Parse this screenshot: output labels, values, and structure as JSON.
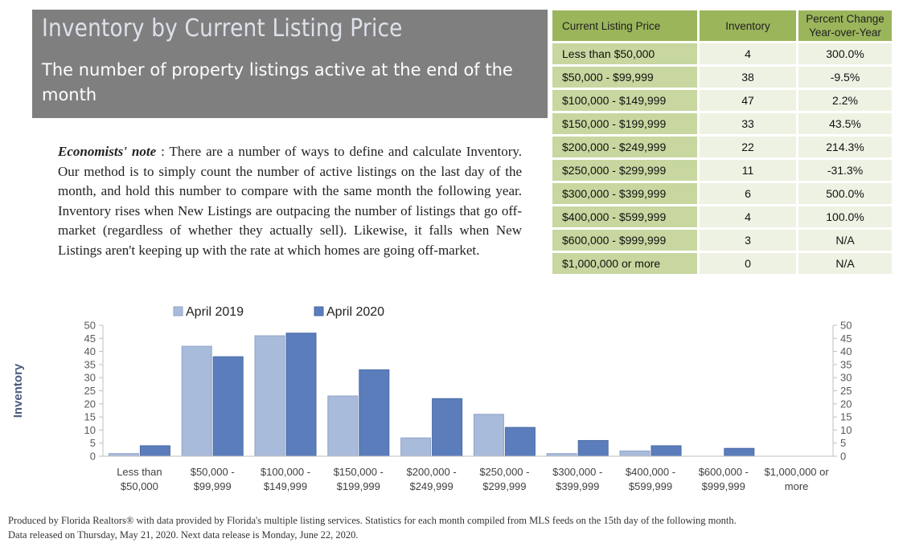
{
  "header": {
    "title": "Inventory by Current Listing Price",
    "subtitle": "The number of property listings active at the end of the month"
  },
  "note": {
    "label": "Economists' note",
    "separator": " :  ",
    "text": "There are a number of ways to define and calculate Inventory.  Our method is to simply count the number of active listings on the last day of the month, and hold this number to compare with the same month the following year.  Inventory rises when New Listings are outpacing the number of listings that go off-market (regardless of whether they actually sell).  Likewise, it falls when New Listings aren't keeping up with the rate at which homes are going off-market."
  },
  "table": {
    "headers": [
      "Current Listing Price",
      "Inventory",
      "Percent Change Year-over-Year"
    ],
    "rows": [
      {
        "price": "Less than $50,000",
        "inventory": "4",
        "pct": "300.0%"
      },
      {
        "price": "$50,000 - $99,999",
        "inventory": "38",
        "pct": "-9.5%"
      },
      {
        "price": "$100,000 - $149,999",
        "inventory": "47",
        "pct": "2.2%"
      },
      {
        "price": "$150,000 - $199,999",
        "inventory": "33",
        "pct": "43.5%"
      },
      {
        "price": "$200,000 - $249,999",
        "inventory": "22",
        "pct": "214.3%"
      },
      {
        "price": "$250,000 - $299,999",
        "inventory": "11",
        "pct": "-31.3%"
      },
      {
        "price": "$300,000 - $399,999",
        "inventory": "6",
        "pct": "500.0%"
      },
      {
        "price": "$400,000 - $599,999",
        "inventory": "4",
        "pct": "100.0%"
      },
      {
        "price": "$600,000 - $999,999",
        "inventory": "3",
        "pct": "N/A"
      },
      {
        "price": "$1,000,000 or more",
        "inventory": "0",
        "pct": "N/A"
      }
    ]
  },
  "colors": {
    "series_2019": "#a9bbdb",
    "series_2020": "#5b7dbc",
    "header_bg": "#7f7f7f",
    "table_header": "#9bb55b",
    "table_price": "#c7d79f",
    "table_cell": "#eef2e3"
  },
  "chart_data": {
    "type": "bar",
    "ylabel": "Inventory",
    "ylim": [
      0,
      50
    ],
    "yticks": [
      0,
      5,
      10,
      15,
      20,
      25,
      30,
      35,
      40,
      45,
      50
    ],
    "secondary_axis": true,
    "grid": false,
    "legend_position": "top",
    "categories": [
      [
        "Less than",
        "$50,000"
      ],
      [
        "$50,000 -",
        "$99,999"
      ],
      [
        "$100,000 -",
        "$149,999"
      ],
      [
        "$150,000 -",
        "$199,999"
      ],
      [
        "$200,000 -",
        "$249,999"
      ],
      [
        "$250,000 -",
        "$299,999"
      ],
      [
        "$300,000 -",
        "$399,999"
      ],
      [
        "$400,000 -",
        "$599,999"
      ],
      [
        "$600,000 -",
        "$999,999"
      ],
      [
        "$1,000,000 or",
        "more"
      ]
    ],
    "series": [
      {
        "name": "April 2019",
        "values": [
          1,
          42,
          46,
          23,
          7,
          16,
          1,
          2,
          0,
          0
        ]
      },
      {
        "name": "April 2020",
        "values": [
          4,
          38,
          47,
          33,
          22,
          11,
          6,
          4,
          3,
          0
        ]
      }
    ]
  },
  "footer": {
    "line1": "Produced by Florida Realtors® with data provided by Florida's multiple listing services. Statistics for each month compiled from MLS feeds on the 15th day of the following month.",
    "line2": "Data released on Thursday, May 21, 2020. Next data release is Monday, June 22, 2020."
  }
}
